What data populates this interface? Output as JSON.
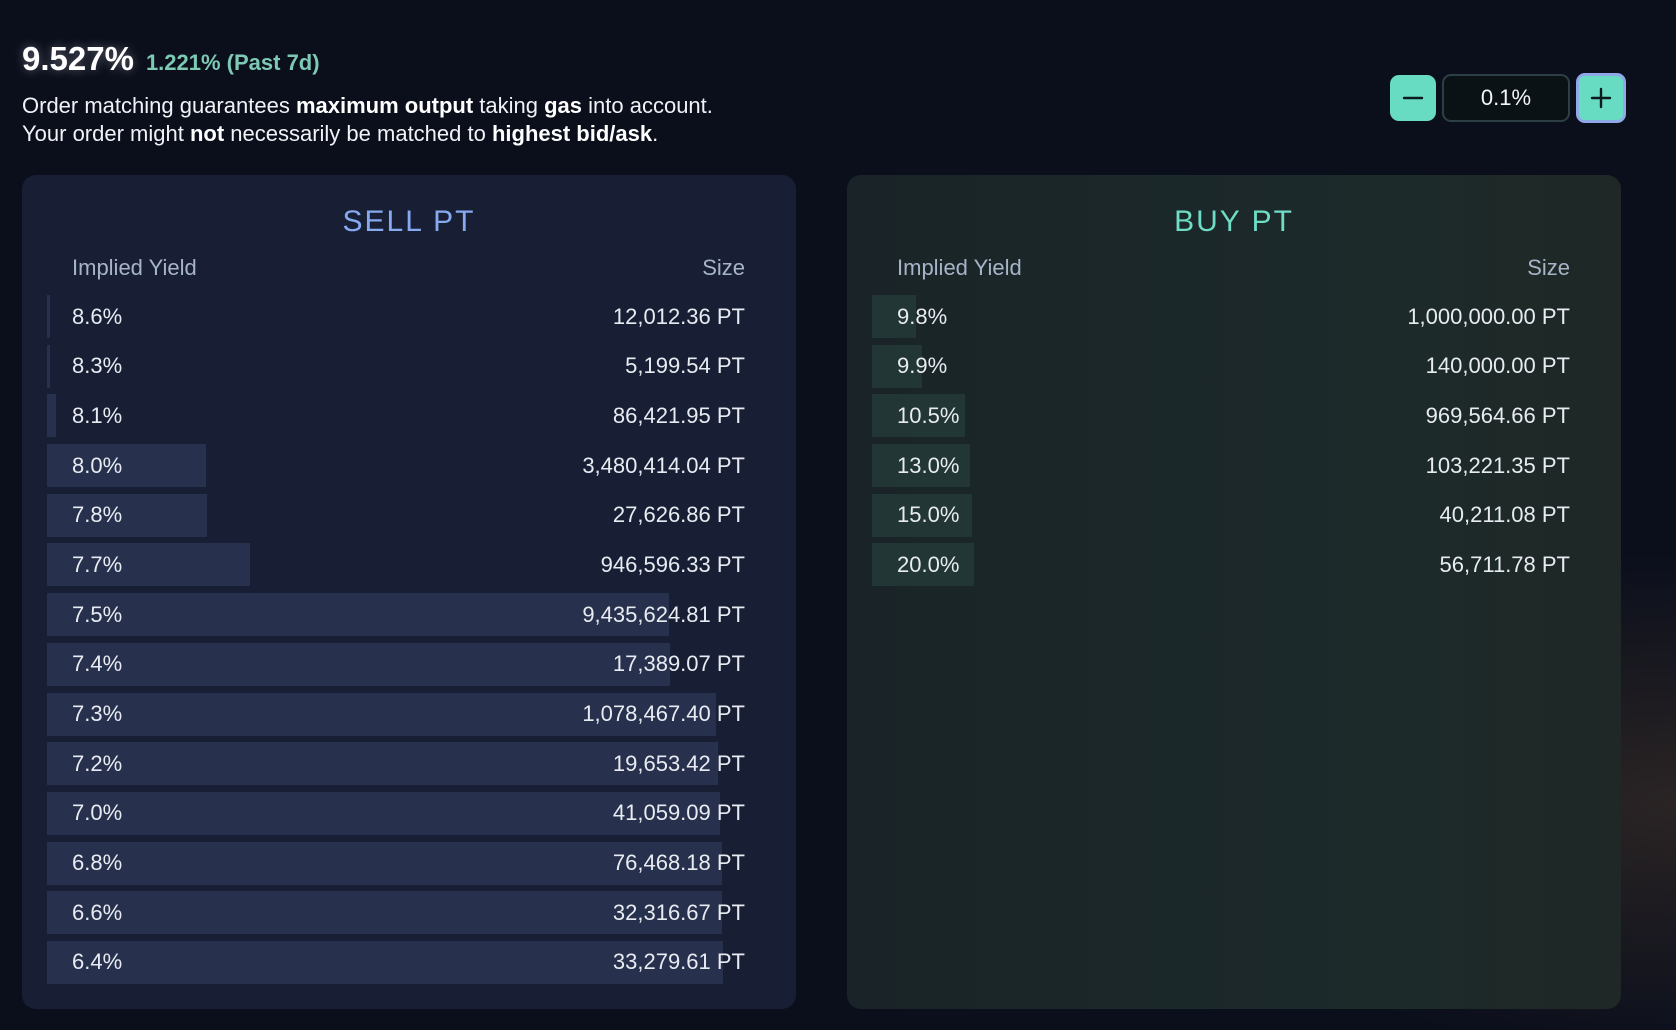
{
  "header": {
    "rate": "9.527%",
    "change": "1.221% (Past 7d)",
    "note_line1": [
      {
        "t": "Order matching guarantees ",
        "b": false
      },
      {
        "t": "maximum output",
        "b": true
      },
      {
        "t": " taking ",
        "b": false
      },
      {
        "t": "gas",
        "b": true
      },
      {
        "t": " into account.",
        "b": false
      }
    ],
    "note_line2": [
      {
        "t": "Your order might ",
        "b": false
      },
      {
        "t": "not",
        "b": true
      },
      {
        "t": " necessarily be matched to ",
        "b": false
      },
      {
        "t": "highest bid/ask",
        "b": true
      },
      {
        "t": ".",
        "b": false
      }
    ]
  },
  "stepper": {
    "value": "0.1%",
    "minus_icon": "minus-icon",
    "plus_icon": "plus-icon",
    "accent": "#67dcc2"
  },
  "sell": {
    "title": "SELL PT",
    "col_yield": "Implied Yield",
    "col_size": "Size",
    "rows": [
      {
        "yield": "8.6%",
        "size": "12,012.36 PT",
        "depth": 0.003
      },
      {
        "yield": "8.3%",
        "size": "5,199.54 PT",
        "depth": 0.004
      },
      {
        "yield": "8.1%",
        "size": "86,421.95 PT",
        "depth": 0.013
      },
      {
        "yield": "8.0%",
        "size": "3,480,414.04 PT",
        "depth": 0.235
      },
      {
        "yield": "7.8%",
        "size": "27,626.86 PT",
        "depth": 0.237
      },
      {
        "yield": "7.7%",
        "size": "946,596.33 PT",
        "depth": 0.3
      },
      {
        "yield": "7.5%",
        "size": "9,435,624.81 PT",
        "depth": 0.92
      },
      {
        "yield": "7.4%",
        "size": "17,389.07 PT",
        "depth": 0.922
      },
      {
        "yield": "7.3%",
        "size": "1,078,467.40 PT",
        "depth": 0.99
      },
      {
        "yield": "7.2%",
        "size": "19,653.42 PT",
        "depth": 0.993
      },
      {
        "yield": "7.0%",
        "size": "41,059.09 PT",
        "depth": 0.996
      },
      {
        "yield": "6.8%",
        "size": "76,468.18 PT",
        "depth": 0.998
      },
      {
        "yield": "6.6%",
        "size": "32,316.67 PT",
        "depth": 0.999
      },
      {
        "yield": "6.4%",
        "size": "33,279.61 PT",
        "depth": 1.0
      }
    ]
  },
  "buy": {
    "title": "BUY PT",
    "col_yield": "Implied Yield",
    "col_size": "Size",
    "rows": [
      {
        "yield": "9.8%",
        "size": "1,000,000.00 PT",
        "depth": 0.065
      },
      {
        "yield": "9.9%",
        "size": "140,000.00 PT",
        "depth": 0.074
      },
      {
        "yield": "10.5%",
        "size": "969,564.66 PT",
        "depth": 0.139
      },
      {
        "yield": "13.0%",
        "size": "103,221.35 PT",
        "depth": 0.146
      },
      {
        "yield": "15.0%",
        "size": "40,211.08 PT",
        "depth": 0.149
      },
      {
        "yield": "20.0%",
        "size": "56,711.78 PT",
        "depth": 0.152
      }
    ]
  }
}
